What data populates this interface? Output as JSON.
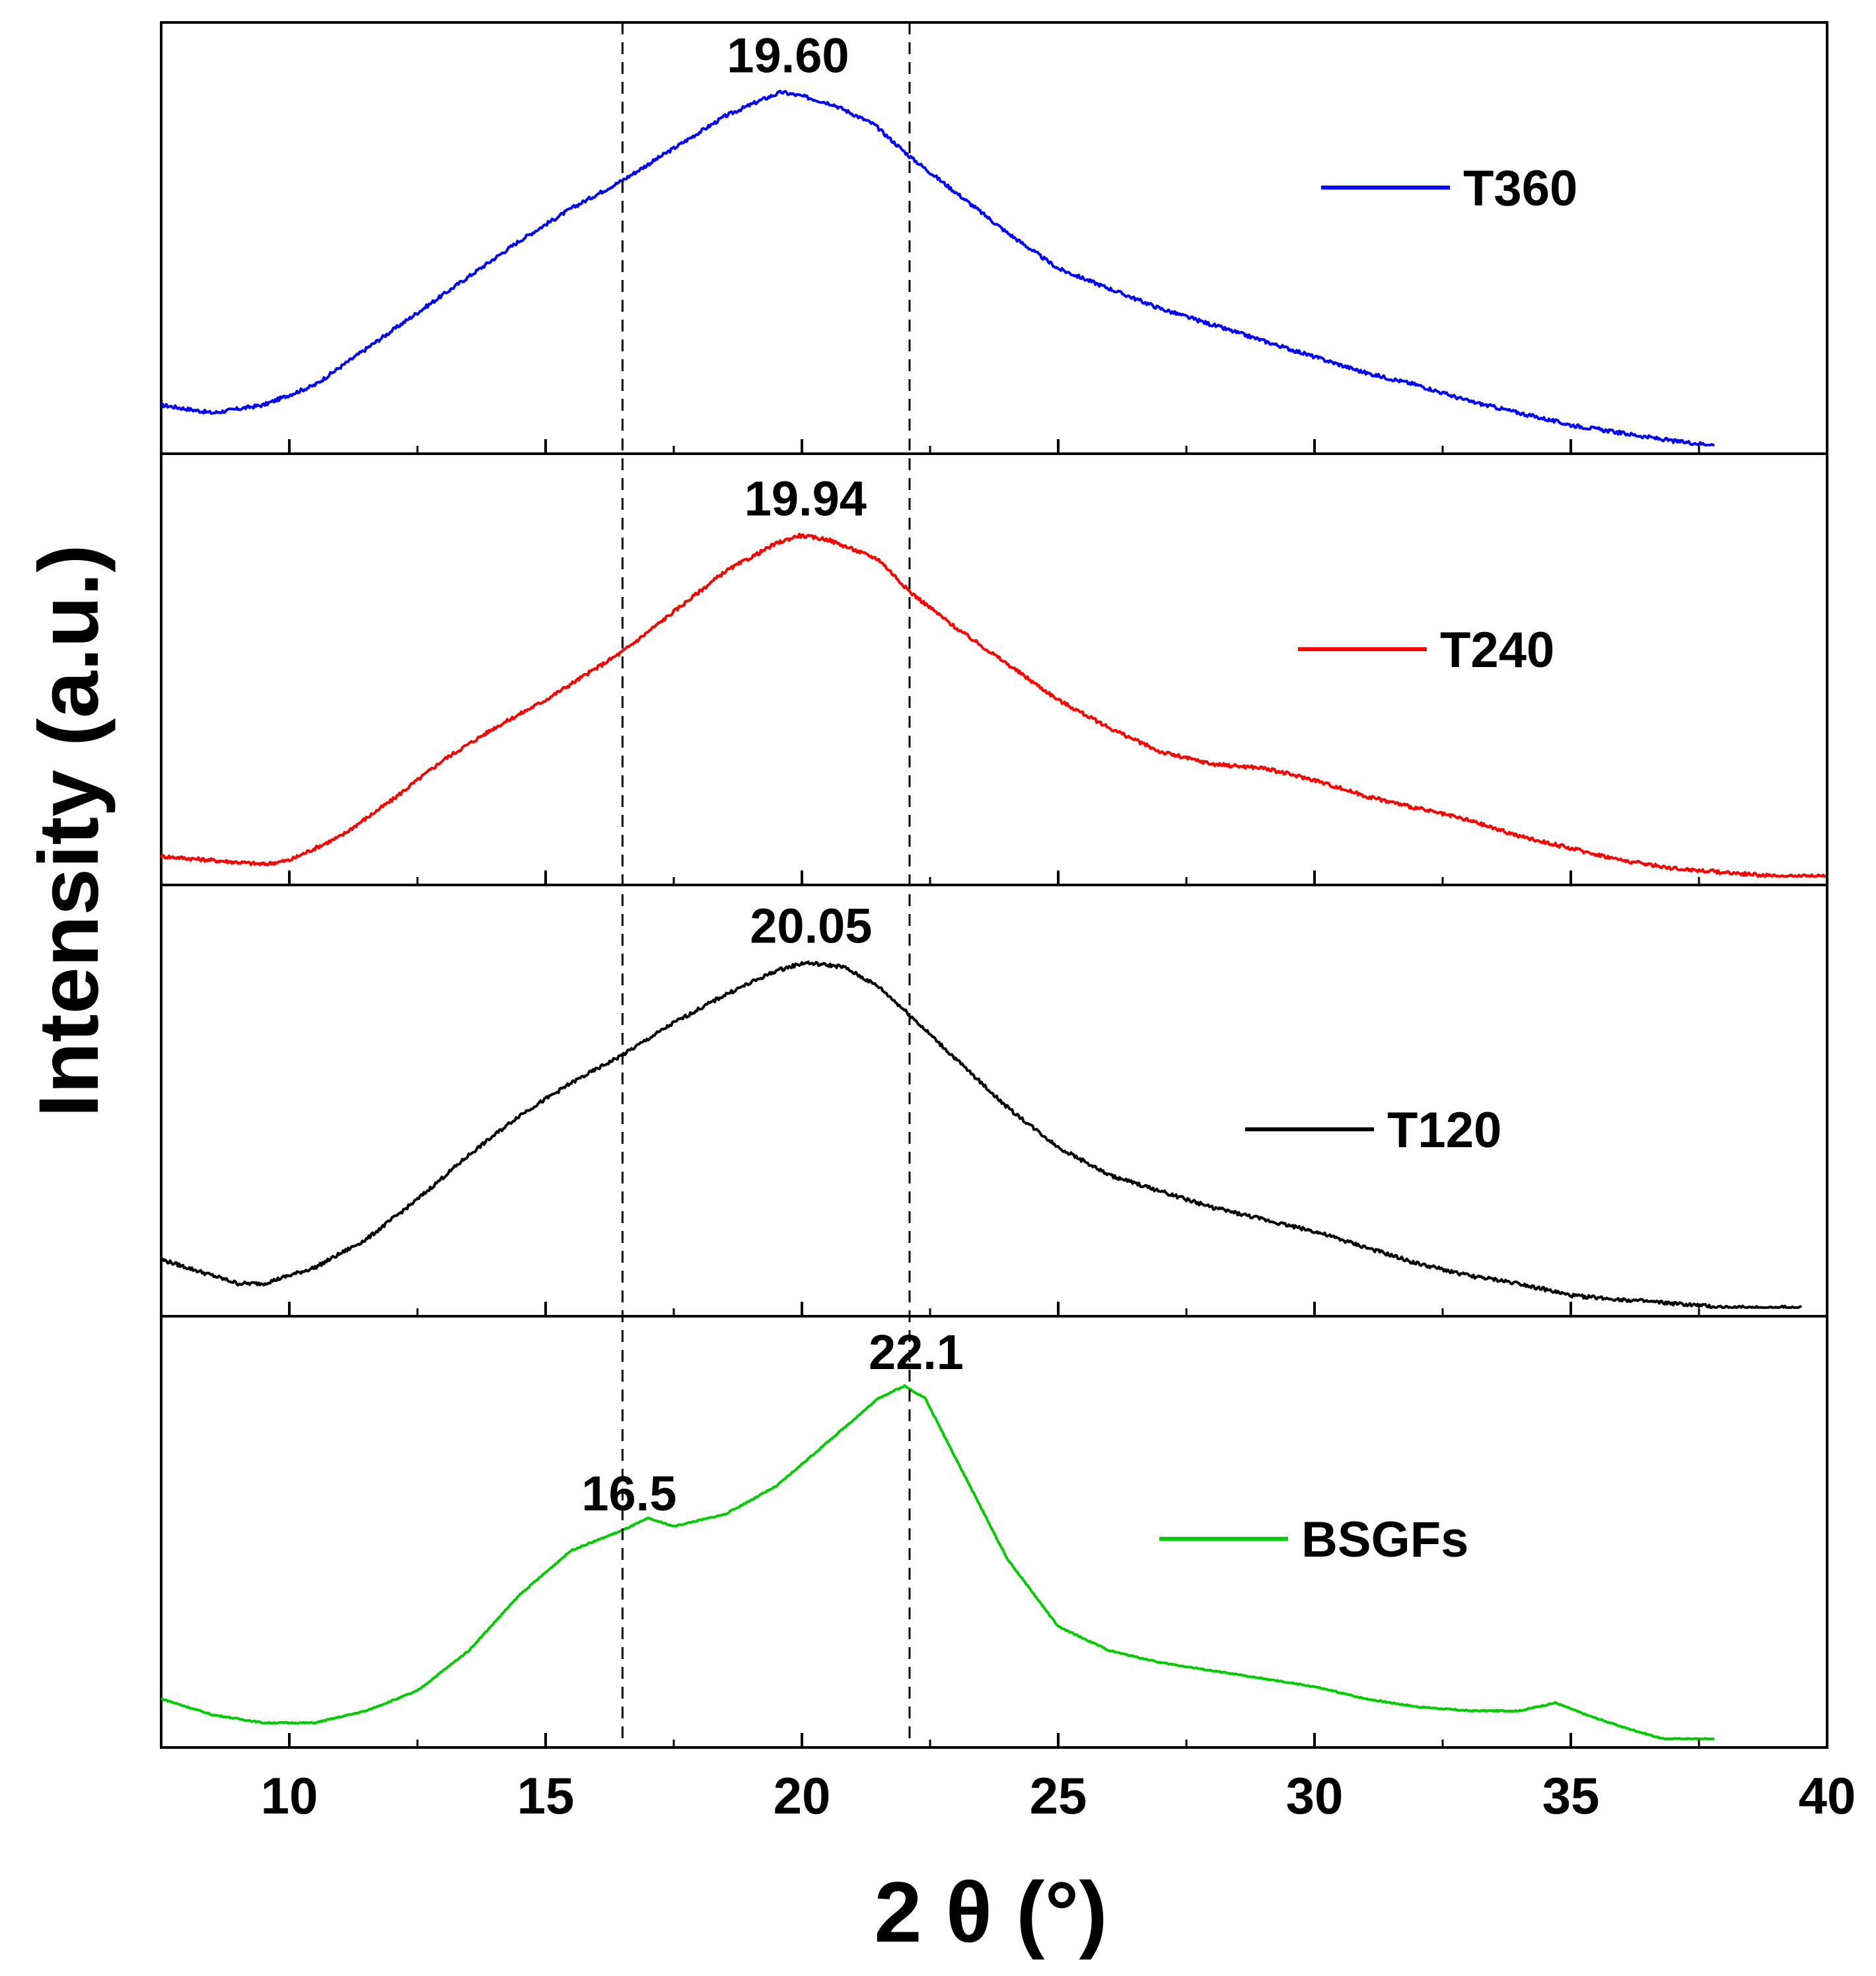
{
  "chart_data": {
    "type": "line",
    "layout": "stacked-panels",
    "xlabel": "2 θ (°)",
    "ylabel": "Intensity (a.u.)",
    "xlim": [
      7.5,
      40
    ],
    "xticks": [
      10,
      15,
      20,
      25,
      30,
      35,
      40
    ],
    "minor_xticks": [
      12.5,
      17.5,
      22.5,
      27.5,
      32.5,
      37.5
    ],
    "reference_lines_x": [
      16.5,
      22.1
    ],
    "series": [
      {
        "name": "T360",
        "color": "#0000ff",
        "peak_label": "19.60",
        "peak_x": 19.6,
        "x": [
          7.5,
          8.5,
          9.5,
          10.5,
          11.5,
          12.5,
          13.5,
          14.5,
          15.5,
          16.5,
          17.5,
          18.5,
          19.2,
          19.6,
          20.0,
          20.6,
          21.4,
          22.1,
          23.0,
          24.0,
          25.0,
          26.0,
          27.0,
          28.0,
          29.0,
          30.0,
          31.0,
          32.0,
          33.0,
          34.0,
          35.0,
          36.0,
          37.0,
          37.8
        ],
        "y": [
          0.1,
          0.08,
          0.1,
          0.15,
          0.24,
          0.33,
          0.42,
          0.51,
          0.59,
          0.66,
          0.74,
          0.82,
          0.86,
          0.88,
          0.87,
          0.85,
          0.8,
          0.72,
          0.63,
          0.53,
          0.44,
          0.39,
          0.34,
          0.3,
          0.26,
          0.22,
          0.18,
          0.15,
          0.11,
          0.08,
          0.05,
          0.03,
          0.01,
          0.0
        ]
      },
      {
        "name": "T240",
        "color": "#ff0000",
        "peak_label": "19.94",
        "peak_x": 19.94,
        "x": [
          7.5,
          8.5,
          9.5,
          10.0,
          11.0,
          12.0,
          13.0,
          14.0,
          15.0,
          16.0,
          16.5,
          17.5,
          18.5,
          19.5,
          19.94,
          20.5,
          21.5,
          22.1,
          23.0,
          24.0,
          25.0,
          26.0,
          27.0,
          28.0,
          29.0,
          30.0,
          31.0,
          32.0,
          33.0,
          34.0,
          35.0,
          36.0,
          37.0,
          38.0,
          39.0,
          40.0
        ],
        "y": [
          0.05,
          0.04,
          0.03,
          0.04,
          0.1,
          0.19,
          0.29,
          0.37,
          0.44,
          0.52,
          0.56,
          0.66,
          0.76,
          0.83,
          0.85,
          0.84,
          0.79,
          0.71,
          0.62,
          0.53,
          0.44,
          0.37,
          0.31,
          0.28,
          0.27,
          0.24,
          0.2,
          0.17,
          0.14,
          0.1,
          0.07,
          0.04,
          0.02,
          0.01,
          0.0,
          0.0
        ]
      },
      {
        "name": "T120",
        "color": "#000000",
        "peak_label": "20.05",
        "peak_x": 20.05,
        "x": [
          7.5,
          8.5,
          9.0,
          9.5,
          10.5,
          11.5,
          12.5,
          13.5,
          14.5,
          15.5,
          16.5,
          17.5,
          18.5,
          19.5,
          20.05,
          20.8,
          21.5,
          22.1,
          23.0,
          24.0,
          25.0,
          26.0,
          27.0,
          28.0,
          29.0,
          30.0,
          31.0,
          32.0,
          33.0,
          34.0,
          35.0,
          36.0,
          37.0,
          38.0,
          39.5
        ],
        "y": [
          0.12,
          0.08,
          0.06,
          0.06,
          0.1,
          0.17,
          0.27,
          0.38,
          0.48,
          0.56,
          0.63,
          0.71,
          0.78,
          0.84,
          0.86,
          0.85,
          0.8,
          0.73,
          0.62,
          0.5,
          0.4,
          0.33,
          0.29,
          0.25,
          0.22,
          0.19,
          0.15,
          0.11,
          0.08,
          0.06,
          0.03,
          0.02,
          0.01,
          0.0,
          0.0
        ]
      },
      {
        "name": "BSGFs",
        "color": "#00cc00",
        "peak_labels": [
          {
            "label": "16.5",
            "x": 16.5
          },
          {
            "label": "22.1",
            "x": 22.1
          }
        ],
        "x": [
          7.5,
          8.5,
          9.5,
          10.5,
          11.5,
          12.5,
          13.5,
          14.5,
          15.5,
          16.5,
          17.0,
          17.5,
          18.5,
          19.5,
          20.5,
          21.5,
          22.0,
          22.4,
          23.0,
          24.0,
          25.0,
          26.0,
          27.0,
          28.0,
          29.0,
          30.0,
          31.0,
          32.0,
          33.0,
          34.0,
          34.7,
          35.3,
          36.0,
          36.8,
          37.8
        ],
        "y": [
          0.1,
          0.06,
          0.04,
          0.04,
          0.07,
          0.12,
          0.22,
          0.36,
          0.47,
          0.52,
          0.55,
          0.53,
          0.56,
          0.63,
          0.74,
          0.85,
          0.88,
          0.85,
          0.7,
          0.45,
          0.28,
          0.22,
          0.19,
          0.17,
          0.15,
          0.13,
          0.1,
          0.08,
          0.07,
          0.07,
          0.09,
          0.06,
          0.03,
          0.0,
          0.0
        ]
      }
    ]
  }
}
